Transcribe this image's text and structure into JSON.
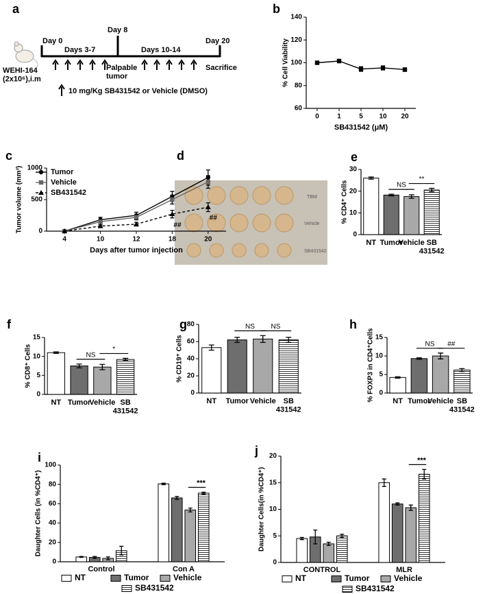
{
  "diagram": {
    "label": "a",
    "day0": "Day 0",
    "days_3_7": "Days 3-7",
    "day8": "Day 8",
    "palpable": "Palpable\ntumor",
    "days_10_14": "Days 10-14",
    "day20": "Day 20",
    "sacrifice": "Sacrifice",
    "cells": "WEHI-164\n(2x10⁶),i.m",
    "treatment": "10 mg/Kg SB431542 or  Vehicle (DMSO)"
  },
  "photo": {
    "label": "d",
    "row_labels": [
      "TBM",
      "Vehicle",
      "SB431542"
    ]
  },
  "chart_data": [
    {
      "label": "b",
      "type": "line",
      "categories": [
        "0",
        "1",
        "5",
        "10",
        "20"
      ],
      "values": [
        100,
        101.5,
        94.5,
        95.5,
        94
      ],
      "errors": [
        0.5,
        1.5,
        2,
        1.8,
        1.5
      ],
      "color": "#000000",
      "marker": "square",
      "ylim": [
        60,
        140
      ],
      "yticks": [
        60,
        80,
        100,
        120,
        140
      ],
      "y_label": "% Cell Viability",
      "x_label": "SB431542 (μM)"
    },
    {
      "label": "c",
      "type": "line",
      "categories": [
        "4",
        "10",
        "12",
        "18",
        "20"
      ],
      "series": [
        {
          "name": "Tumor",
          "color": "#000000",
          "marker": "circle",
          "dashed": false,
          "values": [
            0,
            180,
            250,
            550,
            850
          ],
          "errors": [
            0,
            40,
            50,
            80,
            120
          ]
        },
        {
          "name": "Vehicle",
          "color": "#666666",
          "marker": "square",
          "dashed": false,
          "values": [
            0,
            150,
            220,
            500,
            780
          ],
          "errors": [
            0,
            30,
            40,
            70,
            100
          ]
        },
        {
          "name": "SB431542",
          "color": "#000000",
          "marker": "triangle",
          "dashed": true,
          "values": [
            0,
            80,
            110,
            270,
            380
          ],
          "errors": [
            0,
            20,
            30,
            60,
            70
          ]
        }
      ],
      "ylim": [
        0,
        1000
      ],
      "yticks": [
        0,
        500,
        1000
      ],
      "y_label": "Tumor volume (mm³)",
      "x_label": "Days after tumor injection",
      "annotations": [
        {
          "text": "##",
          "x": "18"
        },
        {
          "text": "##",
          "x": "20"
        }
      ],
      "legend": "upper left"
    },
    {
      "label": "e",
      "type": "bar",
      "categories": [
        "NT",
        "Tumor",
        "Vehicle",
        "SB\n431542"
      ],
      "values": [
        26,
        18.2,
        17.5,
        20.5
      ],
      "errors": [
        0.5,
        0.4,
        0.8,
        0.8
      ],
      "colors": [
        "#ffffff",
        "#6e6e6e",
        "#a8a8a8",
        "#ffffff"
      ],
      "hatched": [
        false,
        false,
        false,
        true
      ],
      "ylim": [
        0,
        30
      ],
      "yticks": [
        0,
        10,
        20,
        30
      ],
      "y_label": "% CD4⁺ Cells",
      "annotations": [
        {
          "text": "NS",
          "between": [
            "Tumor",
            "Vehicle"
          ]
        },
        {
          "text": "**",
          "between": [
            "Vehicle",
            "SB\n431542"
          ]
        }
      ]
    },
    {
      "label": "f",
      "type": "bar",
      "categories": [
        "NT",
        "Tumor",
        "Vehicle",
        "SB\n431542"
      ],
      "values": [
        11,
        7.5,
        7.2,
        9.2
      ],
      "errors": [
        0.2,
        0.5,
        0.7,
        0.3
      ],
      "colors": [
        "#ffffff",
        "#6e6e6e",
        "#a8a8a8",
        "#ffffff"
      ],
      "hatched": [
        false,
        false,
        false,
        true
      ],
      "ylim": [
        0,
        15
      ],
      "yticks": [
        0,
        5,
        10,
        15
      ],
      "y_label": "% CD8⁺ Cells",
      "annotations": [
        {
          "text": "NS",
          "between": [
            "Tumor",
            "Vehicle"
          ]
        },
        {
          "text": "*",
          "between": [
            "Vehicle",
            "SB\n431542"
          ]
        }
      ]
    },
    {
      "label": "g",
      "type": "bar",
      "categories": [
        "NT",
        "Tumor",
        "Vehicle",
        "SB\n431542"
      ],
      "values": [
        53,
        62,
        63,
        62
      ],
      "errors": [
        3,
        3,
        4,
        3
      ],
      "colors": [
        "#ffffff",
        "#6e6e6e",
        "#a8a8a8",
        "#ffffff"
      ],
      "hatched": [
        false,
        false,
        false,
        true
      ],
      "ylim": [
        0,
        80
      ],
      "yticks": [
        0,
        20,
        40,
        60,
        80
      ],
      "y_label": "% CD19⁺ Cells",
      "annotations": [
        {
          "text": "NS",
          "between": [
            "Tumor",
            "Vehicle"
          ]
        },
        {
          "text": "NS",
          "between": [
            "Vehicle",
            "SB\n431542"
          ]
        }
      ]
    },
    {
      "label": "h",
      "type": "bar",
      "categories": [
        "NT",
        "Tumor",
        "Vehicle",
        "SB\n431542"
      ],
      "values": [
        4.2,
        9.3,
        10,
        6.2
      ],
      "errors": [
        0.2,
        0.2,
        0.8,
        0.4
      ],
      "colors": [
        "#ffffff",
        "#6e6e6e",
        "#a8a8a8",
        "#ffffff"
      ],
      "hatched": [
        false,
        false,
        false,
        true
      ],
      "ylim": [
        0,
        15
      ],
      "yticks": [
        0,
        5,
        10,
        15
      ],
      "y_label": "% FOXP3 in CD4⁺Cells",
      "annotations": [
        {
          "text": "NS",
          "between": [
            "Tumor",
            "Vehicle"
          ]
        },
        {
          "text": "##",
          "between": [
            "Vehicle",
            "SB\n431542"
          ]
        }
      ]
    },
    {
      "label": "i",
      "type": "grouped_bar",
      "groups": [
        "Control",
        "Con A"
      ],
      "series": [
        {
          "name": "NT",
          "color": "#ffffff",
          "hatched": false,
          "values": [
            5,
            80.5
          ],
          "errors": [
            0.5,
            0.8
          ]
        },
        {
          "name": "Tumor",
          "color": "#6e6e6e",
          "hatched": false,
          "values": [
            4.5,
            66
          ],
          "errors": [
            1,
            1.5
          ]
        },
        {
          "name": "Vehicle",
          "color": "#a8a8a8",
          "hatched": false,
          "values": [
            3.5,
            53.5
          ],
          "errors": [
            1.5,
            2
          ]
        },
        {
          "name": "SB431542",
          "color": "#ffffff",
          "hatched": true,
          "values": [
            11.5,
            71
          ],
          "errors": [
            4.5,
            1
          ]
        }
      ],
      "ylim": [
        0,
        100
      ],
      "yticks": [
        0,
        20,
        40,
        60,
        80,
        100
      ],
      "y_label": "Daughter Cells (in %CD4⁺)",
      "annotations": [
        {
          "text": "***",
          "group": "Con A",
          "between": [
            "Vehicle",
            "SB431542"
          ]
        }
      ]
    },
    {
      "label": "j",
      "type": "grouped_bar",
      "groups": [
        "CONTROL",
        "MLR"
      ],
      "series": [
        {
          "name": "NT",
          "color": "#ffffff",
          "hatched": false,
          "values": [
            4.5,
            15
          ],
          "errors": [
            0.2,
            0.7
          ]
        },
        {
          "name": "Tumor",
          "color": "#6e6e6e",
          "hatched": false,
          "values": [
            4.8,
            11
          ],
          "errors": [
            1.3,
            0.2
          ]
        },
        {
          "name": "Vehicle",
          "color": "#a8a8a8",
          "hatched": false,
          "values": [
            3.5,
            10.3
          ],
          "errors": [
            0.3,
            0.5
          ]
        },
        {
          "name": "SB431542",
          "color": "#ffffff",
          "hatched": true,
          "values": [
            5,
            16.6
          ],
          "errors": [
            0.3,
            0.9
          ]
        }
      ],
      "ylim": [
        0,
        20
      ],
      "yticks": [
        0,
        5,
        10,
        15,
        20
      ],
      "y_label": "Daughter Cells(in %CD4⁺)",
      "annotations": [
        {
          "text": "***",
          "group": "MLR",
          "between": [
            "Vehicle",
            "SB431542"
          ]
        }
      ]
    }
  ]
}
